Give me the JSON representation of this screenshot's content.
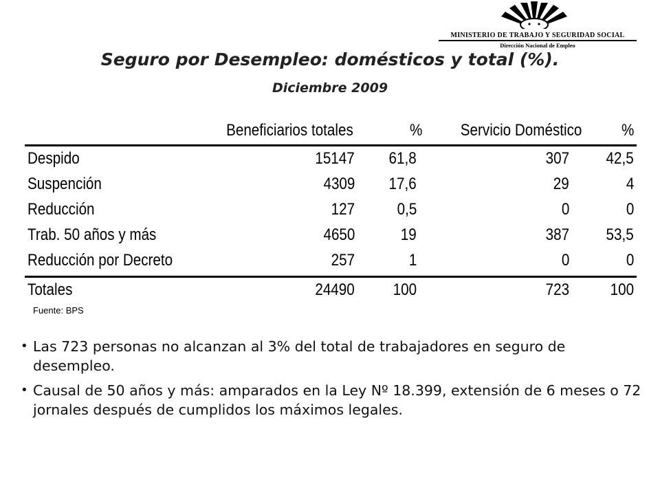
{
  "logo": {
    "organization": "MINISTERIO DE TRABAJO Y SEGURIDAD SOCIAL",
    "division": "Dirección Nacional de Empleo"
  },
  "title": "Seguro por Desempleo: domésticos y total (%).",
  "subtitle": "Diciembre 2009",
  "table": {
    "headers": {
      "label": "",
      "beneficiarios": "Beneficiarios totales",
      "pct1": "%",
      "domestico": "Servicio Doméstico",
      "pct2": "%"
    },
    "rows": [
      {
        "label": "Despido",
        "beneficiarios": "15147",
        "pct1": "61,8",
        "domestico": "307",
        "pct2": "42,5"
      },
      {
        "label": "Suspención",
        "beneficiarios": "4309",
        "pct1": "17,6",
        "domestico": "29",
        "pct2": "4"
      },
      {
        "label": "Reducción",
        "beneficiarios": "127",
        "pct1": "0,5",
        "domestico": "0",
        "pct2": "0"
      },
      {
        "label": "Trab. 50 años y más",
        "beneficiarios": "4650",
        "pct1": "19",
        "domestico": "387",
        "pct2": "53,5"
      },
      {
        "label": "Reducción por Decreto",
        "beneficiarios": "257",
        "pct1": "1",
        "domestico": "0",
        "pct2": "0"
      }
    ],
    "total": {
      "label": "Totales",
      "beneficiarios": "24490",
      "pct1": "100",
      "domestico": "723",
      "pct2": "100"
    }
  },
  "source": "Fuente: BPS",
  "bullets": [
    "Las 723 personas no alcanzan al 3% del total de trabajadores en seguro de desempleo.",
    "Causal de 50 años y más: amparados en la Ley Nº 18.399, extensión de 6 meses o 72 jornales después de cumplidos los máximos legales."
  ]
}
